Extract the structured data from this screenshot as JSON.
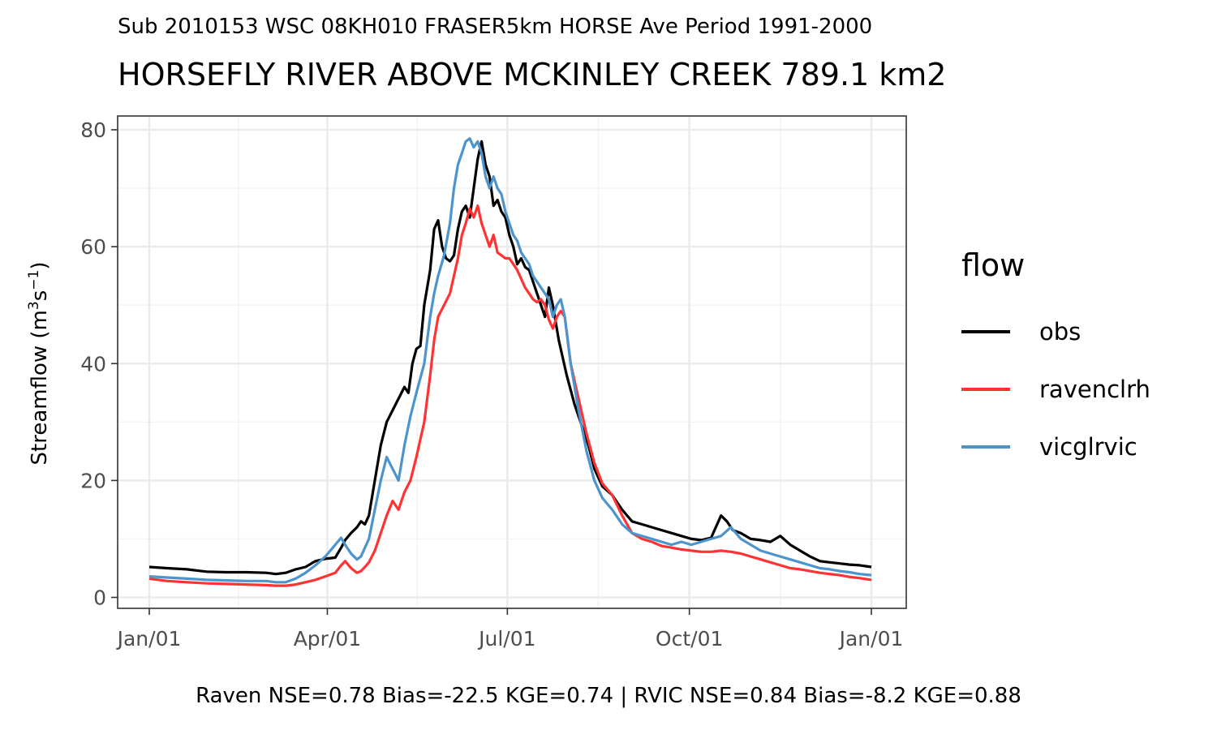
{
  "chart_data": {
    "type": "line",
    "subtitle": "Sub 2010153 WSC 08KH010 FRASER5km HORSE Ave Period 1991-2000",
    "title": "HORSEFLY RIVER ABOVE MCKINLEY CREEK 789.1 km2",
    "ylabel_text": "Streamflow (m",
    "ylabel_exp1": "3",
    "ylabel_mid": "s",
    "ylabel_exp2": "−1",
    "ylabel_close": ")",
    "footer": "Raven NSE=0.78 Bias=-22.5 KGE=0.74 | RVIC NSE=0.84 Bias=-8.2 KGE=0.88",
    "legend_title": "flow",
    "legend_position": "right",
    "grid": true,
    "x_ticks": [
      {
        "day": 1,
        "label": "Jan/01"
      },
      {
        "day": 91,
        "label": "Apr/01"
      },
      {
        "day": 182,
        "label": "Jul/01"
      },
      {
        "day": 274,
        "label": "Oct/01"
      },
      {
        "day": 366,
        "label": "Jan/01"
      }
    ],
    "x_range_days": [
      1,
      366
    ],
    "y_ticks": [
      0,
      20,
      40,
      60,
      80
    ],
    "ylim": [
      0,
      80
    ],
    "series": [
      {
        "name": "obs",
        "color": "#000000",
        "points": [
          [
            1,
            5.2
          ],
          [
            10,
            5.0
          ],
          [
            20,
            4.8
          ],
          [
            30,
            4.4
          ],
          [
            40,
            4.3
          ],
          [
            50,
            4.3
          ],
          [
            60,
            4.2
          ],
          [
            65,
            4.0
          ],
          [
            70,
            4.2
          ],
          [
            75,
            4.8
          ],
          [
            80,
            5.2
          ],
          [
            85,
            6.2
          ],
          [
            90,
            6.6
          ],
          [
            95,
            6.8
          ],
          [
            98,
            8.5
          ],
          [
            100,
            9.8
          ],
          [
            103,
            11.0
          ],
          [
            106,
            12.0
          ],
          [
            108,
            13.0
          ],
          [
            110,
            12.5
          ],
          [
            112,
            14.0
          ],
          [
            115,
            20.0
          ],
          [
            118,
            26.0
          ],
          [
            121,
            30.0
          ],
          [
            124,
            32.0
          ],
          [
            127,
            34.0
          ],
          [
            130,
            36.0
          ],
          [
            132,
            35.0
          ],
          [
            134,
            40.0
          ],
          [
            136,
            42.5
          ],
          [
            138,
            43.0
          ],
          [
            140,
            50.0
          ],
          [
            143,
            56.0
          ],
          [
            145,
            63.0
          ],
          [
            147,
            64.5
          ],
          [
            149,
            60.0
          ],
          [
            151,
            58.0
          ],
          [
            153,
            57.5
          ],
          [
            155,
            58.5
          ],
          [
            157,
            63.0
          ],
          [
            159,
            66.0
          ],
          [
            161,
            67.0
          ],
          [
            163,
            65.0
          ],
          [
            165,
            70.0
          ],
          [
            167,
            75.0
          ],
          [
            169,
            78.0
          ],
          [
            171,
            74.0
          ],
          [
            173,
            72.0
          ],
          [
            175,
            67.0
          ],
          [
            177,
            68.0
          ],
          [
            179,
            66.0
          ],
          [
            181,
            65.0
          ],
          [
            183,
            62.0
          ],
          [
            185,
            60.0
          ],
          [
            187,
            57.0
          ],
          [
            189,
            58.0
          ],
          [
            191,
            56.5
          ],
          [
            193,
            56.0
          ],
          [
            195,
            54.0
          ],
          [
            197,
            52.0
          ],
          [
            199,
            50.0
          ],
          [
            201,
            48.0
          ],
          [
            203,
            53.0
          ],
          [
            205,
            50.0
          ],
          [
            208,
            44.0
          ],
          [
            212,
            38.0
          ],
          [
            216,
            33.0
          ],
          [
            220,
            29.0
          ],
          [
            223,
            26.0
          ],
          [
            226,
            22.0
          ],
          [
            230,
            19.0
          ],
          [
            235,
            17.5
          ],
          [
            240,
            15.0
          ],
          [
            245,
            13.0
          ],
          [
            250,
            12.5
          ],
          [
            255,
            12.0
          ],
          [
            260,
            11.5
          ],
          [
            265,
            11.0
          ],
          [
            270,
            10.5
          ],
          [
            275,
            10.0
          ],
          [
            280,
            9.8
          ],
          [
            285,
            10.2
          ],
          [
            290,
            14.0
          ],
          [
            293,
            13.0
          ],
          [
            296,
            11.5
          ],
          [
            300,
            11.0
          ],
          [
            305,
            10.0
          ],
          [
            310,
            9.8
          ],
          [
            315,
            9.5
          ],
          [
            320,
            10.5
          ],
          [
            325,
            9.0
          ],
          [
            330,
            8.0
          ],
          [
            335,
            7.0
          ],
          [
            340,
            6.2
          ],
          [
            345,
            6.0
          ],
          [
            350,
            5.8
          ],
          [
            355,
            5.6
          ],
          [
            360,
            5.5
          ],
          [
            366,
            5.2
          ]
        ]
      },
      {
        "name": "ravenclrh",
        "color": "#ff3333",
        "points": [
          [
            1,
            3.2
          ],
          [
            10,
            2.8
          ],
          [
            20,
            2.6
          ],
          [
            30,
            2.4
          ],
          [
            40,
            2.3
          ],
          [
            50,
            2.2
          ],
          [
            60,
            2.1
          ],
          [
            65,
            2.0
          ],
          [
            70,
            2.0
          ],
          [
            75,
            2.2
          ],
          [
            80,
            2.6
          ],
          [
            85,
            3.0
          ],
          [
            90,
            3.6
          ],
          [
            95,
            4.2
          ],
          [
            98,
            5.5
          ],
          [
            100,
            6.2
          ],
          [
            103,
            5.0
          ],
          [
            106,
            4.2
          ],
          [
            108,
            4.5
          ],
          [
            110,
            5.2
          ],
          [
            112,
            6.0
          ],
          [
            115,
            8.0
          ],
          [
            118,
            11.0
          ],
          [
            121,
            14.0
          ],
          [
            124,
            16.5
          ],
          [
            127,
            15.0
          ],
          [
            130,
            18.0
          ],
          [
            133,
            20.0
          ],
          [
            136,
            24.0
          ],
          [
            140,
            30.0
          ],
          [
            143,
            38.0
          ],
          [
            145,
            44.0
          ],
          [
            147,
            48.0
          ],
          [
            150,
            50.0
          ],
          [
            153,
            52.0
          ],
          [
            155,
            55.0
          ],
          [
            157,
            58.0
          ],
          [
            159,
            62.0
          ],
          [
            161,
            64.0
          ],
          [
            163,
            66.5
          ],
          [
            165,
            65.0
          ],
          [
            167,
            67.0
          ],
          [
            169,
            64.0
          ],
          [
            171,
            62.0
          ],
          [
            173,
            60.0
          ],
          [
            175,
            62.0
          ],
          [
            177,
            59.0
          ],
          [
            179,
            58.5
          ],
          [
            181,
            58.0
          ],
          [
            183,
            58.0
          ],
          [
            185,
            57.0
          ],
          [
            187,
            56.0
          ],
          [
            189,
            54.5
          ],
          [
            191,
            53.0
          ],
          [
            193,
            52.0
          ],
          [
            195,
            51.0
          ],
          [
            197,
            50.5
          ],
          [
            199,
            51.0
          ],
          [
            201,
            50.0
          ],
          [
            203,
            47.5
          ],
          [
            205,
            46.0
          ],
          [
            207,
            48.0
          ],
          [
            209,
            49.0
          ],
          [
            211,
            48.0
          ],
          [
            214,
            40.0
          ],
          [
            218,
            34.0
          ],
          [
            222,
            28.0
          ],
          [
            226,
            23.0
          ],
          [
            230,
            19.5
          ],
          [
            235,
            17.5
          ],
          [
            240,
            14.0
          ],
          [
            245,
            11.0
          ],
          [
            250,
            10.0
          ],
          [
            255,
            9.5
          ],
          [
            260,
            8.8
          ],
          [
            265,
            8.5
          ],
          [
            270,
            8.2
          ],
          [
            275,
            8.0
          ],
          [
            280,
            7.8
          ],
          [
            285,
            7.8
          ],
          [
            290,
            8.0
          ],
          [
            295,
            7.8
          ],
          [
            300,
            7.5
          ],
          [
            305,
            7.0
          ],
          [
            310,
            6.5
          ],
          [
            315,
            6.0
          ],
          [
            320,
            5.5
          ],
          [
            325,
            5.0
          ],
          [
            330,
            4.8
          ],
          [
            335,
            4.5
          ],
          [
            340,
            4.2
          ],
          [
            345,
            4.0
          ],
          [
            350,
            3.8
          ],
          [
            355,
            3.5
          ],
          [
            360,
            3.3
          ],
          [
            366,
            3.0
          ]
        ]
      },
      {
        "name": "vicglrvic",
        "color": "#4d94cc",
        "points": [
          [
            1,
            3.6
          ],
          [
            10,
            3.4
          ],
          [
            20,
            3.2
          ],
          [
            30,
            3.0
          ],
          [
            40,
            2.9
          ],
          [
            50,
            2.8
          ],
          [
            60,
            2.8
          ],
          [
            65,
            2.6
          ],
          [
            70,
            2.6
          ],
          [
            75,
            3.2
          ],
          [
            80,
            4.2
          ],
          [
            85,
            5.5
          ],
          [
            90,
            7.0
          ],
          [
            95,
            9.0
          ],
          [
            98,
            10.2
          ],
          [
            100,
            9.0
          ],
          [
            103,
            7.5
          ],
          [
            106,
            6.5
          ],
          [
            108,
            7.0
          ],
          [
            110,
            8.5
          ],
          [
            112,
            10.0
          ],
          [
            115,
            15.0
          ],
          [
            118,
            20.0
          ],
          [
            121,
            24.0
          ],
          [
            124,
            22.0
          ],
          [
            127,
            20.0
          ],
          [
            130,
            26.0
          ],
          [
            133,
            31.0
          ],
          [
            136,
            35.0
          ],
          [
            140,
            40.0
          ],
          [
            143,
            48.0
          ],
          [
            145,
            52.0
          ],
          [
            147,
            55.0
          ],
          [
            150,
            58.5
          ],
          [
            153,
            64.0
          ],
          [
            155,
            70.0
          ],
          [
            157,
            74.0
          ],
          [
            159,
            76.0
          ],
          [
            161,
            78.0
          ],
          [
            163,
            78.5
          ],
          [
            165,
            77.0
          ],
          [
            167,
            78.0
          ],
          [
            169,
            76.0
          ],
          [
            171,
            72.0
          ],
          [
            173,
            70.0
          ],
          [
            175,
            72.0
          ],
          [
            177,
            70.0
          ],
          [
            179,
            69.0
          ],
          [
            181,
            66.0
          ],
          [
            183,
            64.0
          ],
          [
            185,
            62.0
          ],
          [
            187,
            61.0
          ],
          [
            189,
            59.0
          ],
          [
            191,
            58.0
          ],
          [
            193,
            57.0
          ],
          [
            195,
            55.0
          ],
          [
            197,
            54.0
          ],
          [
            199,
            53.0
          ],
          [
            201,
            52.0
          ],
          [
            203,
            51.0
          ],
          [
            205,
            48.0
          ],
          [
            207,
            50.0
          ],
          [
            209,
            51.0
          ],
          [
            211,
            48.0
          ],
          [
            214,
            40.0
          ],
          [
            218,
            32.0
          ],
          [
            222,
            25.0
          ],
          [
            226,
            20.0
          ],
          [
            230,
            17.0
          ],
          [
            235,
            15.0
          ],
          [
            240,
            12.5
          ],
          [
            245,
            11.0
          ],
          [
            250,
            10.5
          ],
          [
            255,
            10.0
          ],
          [
            260,
            9.5
          ],
          [
            265,
            9.0
          ],
          [
            270,
            9.5
          ],
          [
            275,
            9.0
          ],
          [
            280,
            9.5
          ],
          [
            285,
            10.0
          ],
          [
            290,
            10.5
          ],
          [
            295,
            12.0
          ],
          [
            300,
            10.0
          ],
          [
            305,
            9.0
          ],
          [
            310,
            8.0
          ],
          [
            315,
            7.5
          ],
          [
            320,
            7.0
          ],
          [
            325,
            6.5
          ],
          [
            330,
            6.0
          ],
          [
            335,
            5.5
          ],
          [
            340,
            5.0
          ],
          [
            345,
            4.8
          ],
          [
            350,
            4.5
          ],
          [
            355,
            4.3
          ],
          [
            360,
            4.0
          ],
          [
            366,
            3.8
          ]
        ]
      }
    ]
  }
}
